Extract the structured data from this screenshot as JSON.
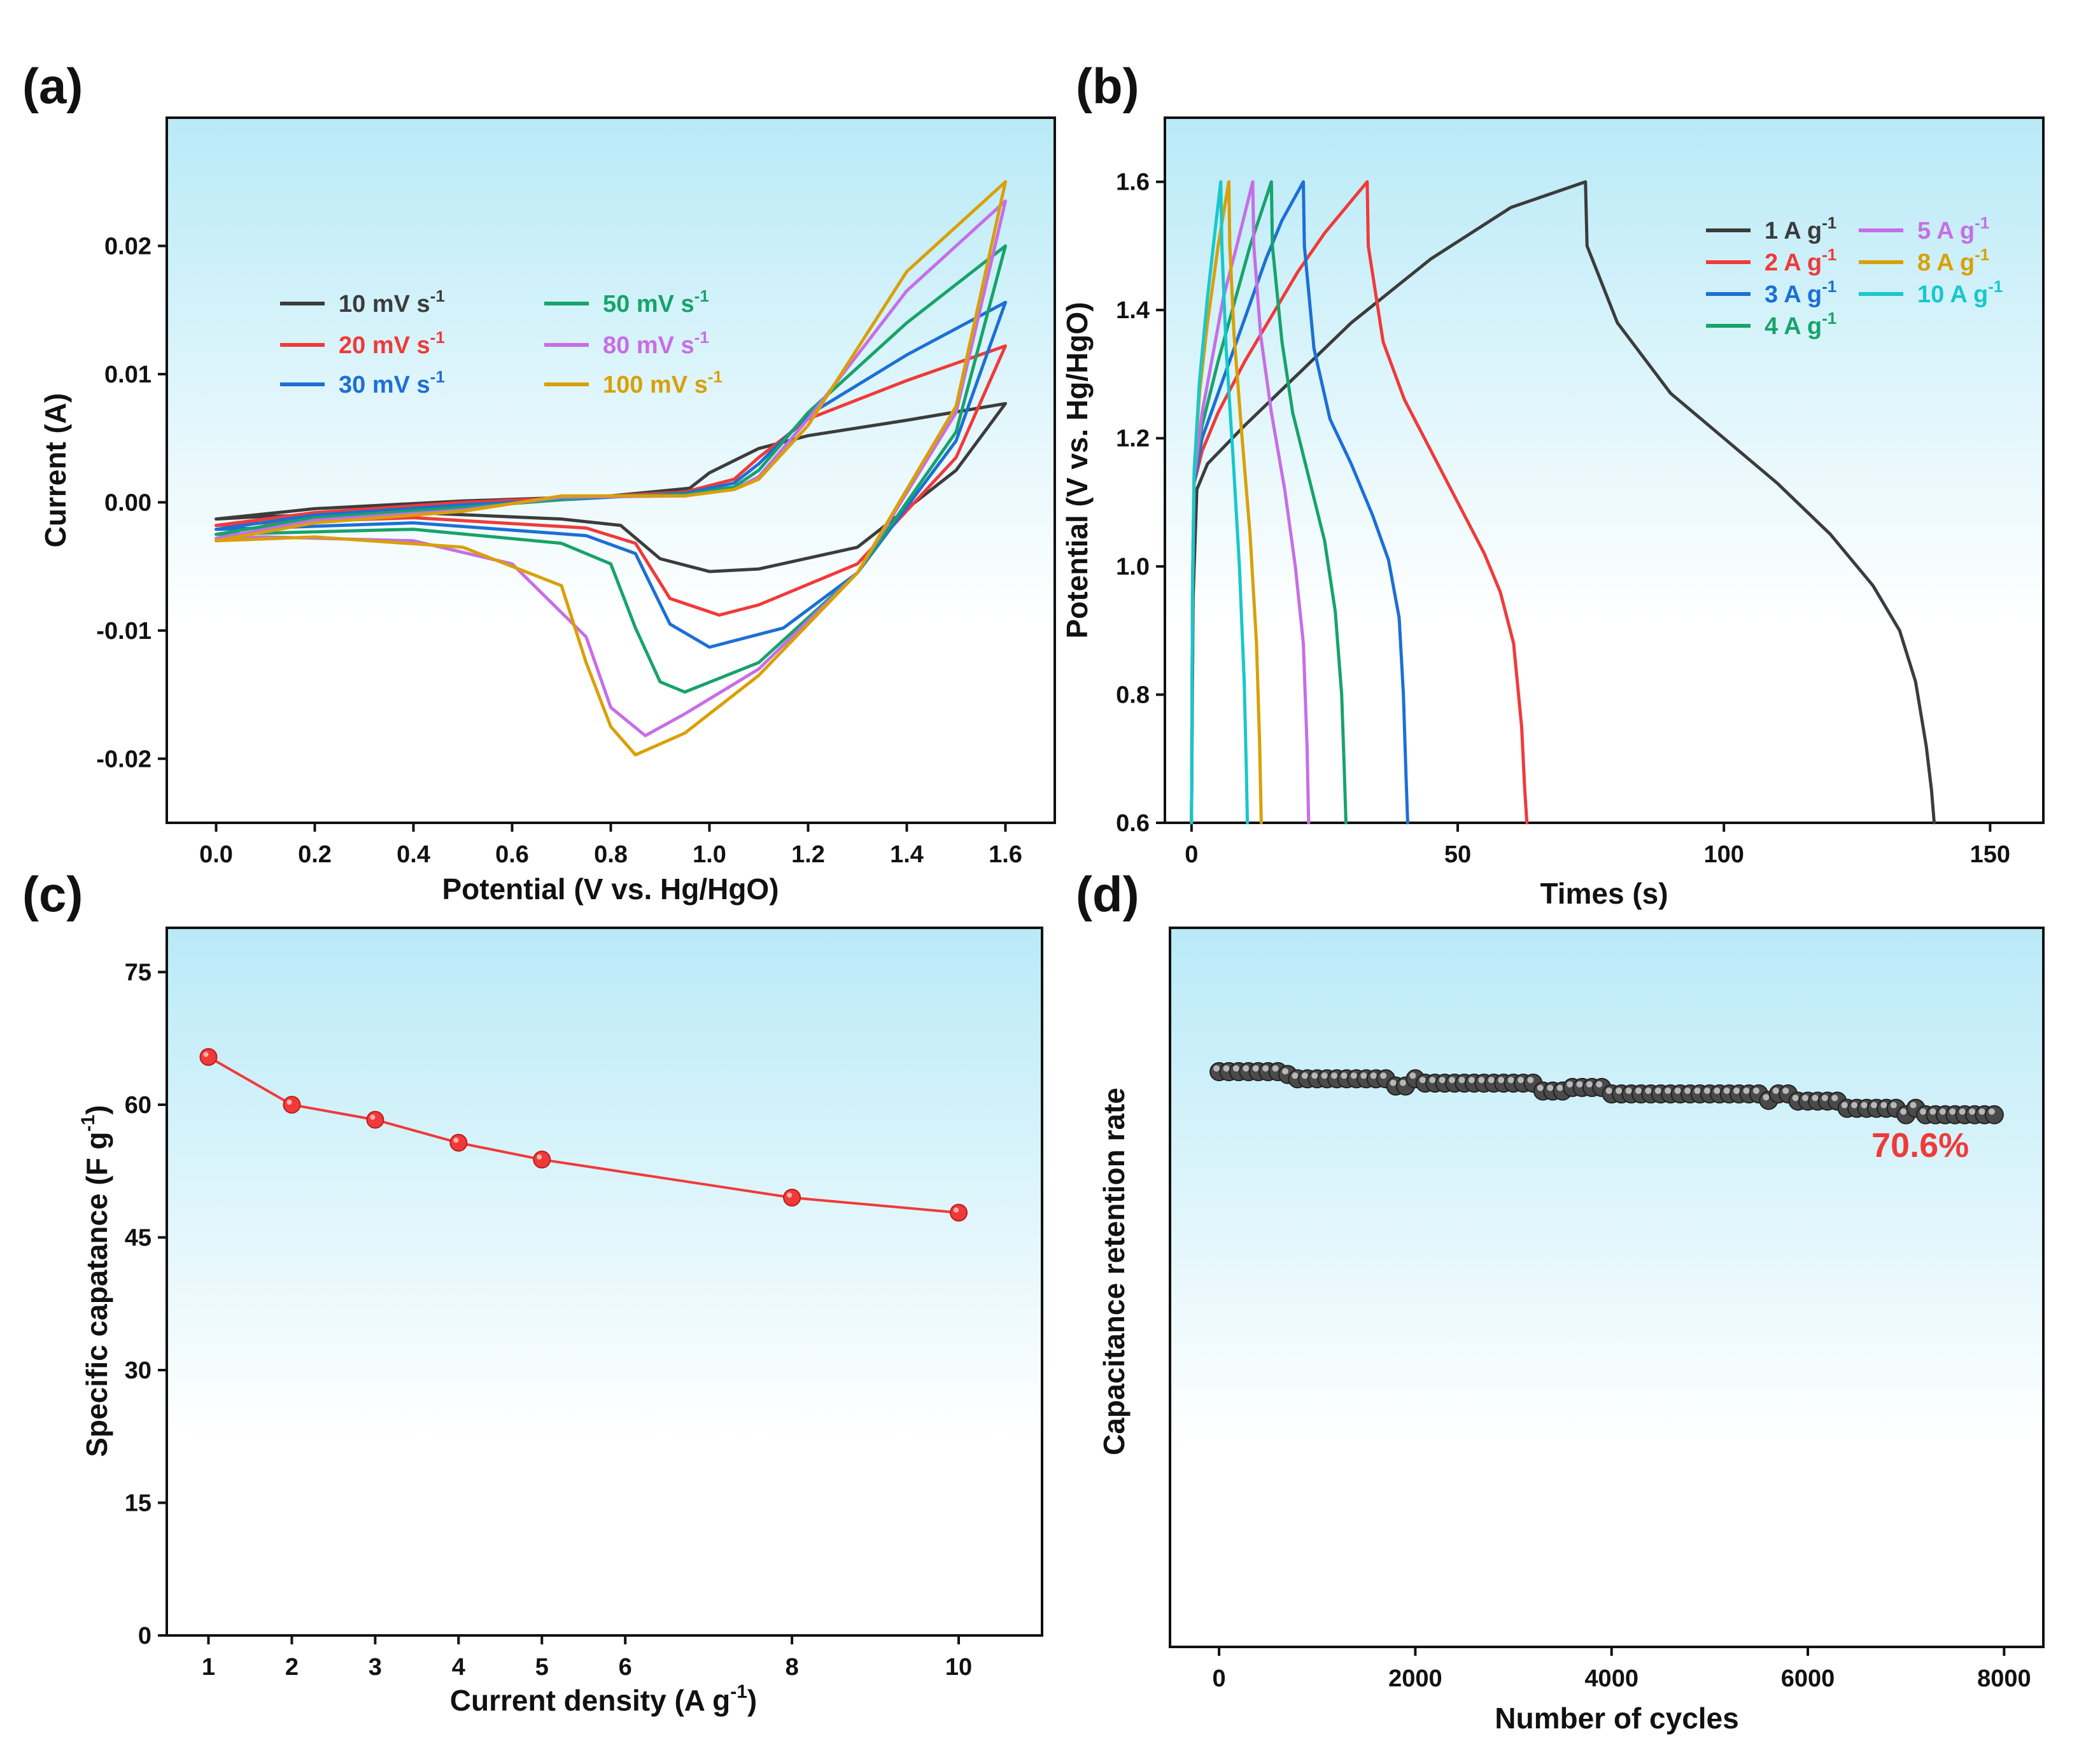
{
  "colors": {
    "bg_top": "#b9eaf7",
    "bg_bottom": "#ffffff",
    "axis": "#111111",
    "black": "#3c3c3c",
    "red": "#f03a3a",
    "blue": "#1c6fd6",
    "green": "#17a36a",
    "violet": "#c66ee6",
    "orange": "#d9a007",
    "cyan": "#18c7cc",
    "retention_marker": "#4a4a4a",
    "retention_label": "#f03a3a"
  },
  "chart_data": [
    {
      "panel": "(a)",
      "type": "line",
      "title": "",
      "xlabel": "Potential (V vs. Hg/HgO)",
      "ylabel": "Current (A)",
      "xlim": [
        -0.1,
        1.7
      ],
      "ylim": [
        -0.025,
        0.03
      ],
      "xticks": [
        "0.0",
        "0.2",
        "0.4",
        "0.6",
        "0.8",
        "1.0",
        "1.2",
        "1.4",
        "1.6"
      ],
      "yticks": [
        "-0.02",
        "-0.01",
        "0.00",
        "0.01",
        "0.02"
      ],
      "legend_position": "upper-left",
      "legend_unit": "mV s",
      "legend_sup": "-1",
      "series": [
        {
          "name": "10 mV s-1",
          "label": "10 ",
          "color_key": "black",
          "x": [
            0,
            0.2,
            0.5,
            0.8,
            0.96,
            1.0,
            1.1,
            1.2,
            1.4,
            1.6,
            1.6,
            1.5,
            1.3,
            1.1,
            1.0,
            0.9,
            0.82,
            0.7,
            0.4,
            0.1,
            0
          ],
          "y": [
            -0.0013,
            -0.0005,
            0.0001,
            0.0005,
            0.0011,
            0.0023,
            0.0042,
            0.0052,
            0.0064,
            0.0077,
            0.0077,
            0.0025,
            -0.0035,
            -0.0052,
            -0.0054,
            -0.0044,
            -0.0018,
            -0.0013,
            -0.0008,
            -0.0011,
            -0.0013
          ]
        },
        {
          "name": "20 mV s-1",
          "label": "20 ",
          "color_key": "red",
          "x": [
            0,
            0.2,
            0.5,
            0.8,
            0.95,
            1.05,
            1.1,
            1.2,
            1.4,
            1.6,
            1.6,
            1.5,
            1.3,
            1.1,
            1.02,
            0.92,
            0.85,
            0.75,
            0.4,
            0.1,
            0
          ],
          "y": [
            -0.0018,
            -0.0008,
            0.0,
            0.0005,
            0.0008,
            0.0018,
            0.0035,
            0.0065,
            0.0095,
            0.0122,
            0.0122,
            0.0035,
            -0.0048,
            -0.008,
            -0.0088,
            -0.0075,
            -0.0032,
            -0.002,
            -0.0012,
            -0.0016,
            -0.0018
          ]
        },
        {
          "name": "30 mV s-1",
          "label": "30 ",
          "color_key": "blue",
          "x": [
            0,
            0.2,
            0.5,
            0.8,
            0.95,
            1.05,
            1.1,
            1.2,
            1.4,
            1.6,
            1.6,
            1.5,
            1.3,
            1.15,
            1.0,
            0.92,
            0.85,
            0.75,
            0.4,
            0.1,
            0
          ],
          "y": [
            -0.0021,
            -0.001,
            -0.0002,
            0.0004,
            0.0007,
            0.0015,
            0.003,
            0.0068,
            0.0115,
            0.0156,
            0.0156,
            0.0048,
            -0.0055,
            -0.0098,
            -0.0113,
            -0.0095,
            -0.004,
            -0.0026,
            -0.0016,
            -0.002,
            -0.0021
          ]
        },
        {
          "name": "50 mV s-1",
          "label": "50 ",
          "color_key": "green",
          "x": [
            0,
            0.2,
            0.5,
            0.8,
            0.95,
            1.05,
            1.1,
            1.2,
            1.4,
            1.6,
            1.6,
            1.5,
            1.3,
            1.1,
            0.95,
            0.9,
            0.85,
            0.8,
            0.7,
            0.4,
            0.1,
            0
          ],
          "y": [
            -0.0025,
            -0.0012,
            -0.0004,
            0.0005,
            0.0006,
            0.0012,
            0.0025,
            0.007,
            0.014,
            0.02,
            0.02,
            0.0055,
            -0.0055,
            -0.0125,
            -0.0148,
            -0.014,
            -0.0098,
            -0.0048,
            -0.0032,
            -0.0021,
            -0.0024,
            -0.0025
          ]
        },
        {
          "name": "80 mV s-1",
          "label": "80 ",
          "color_key": "violet",
          "x": [
            0,
            0.2,
            0.5,
            0.7,
            0.95,
            1.05,
            1.1,
            1.2,
            1.4,
            1.6,
            1.6,
            1.5,
            1.3,
            1.1,
            0.95,
            0.87,
            0.8,
            0.75,
            0.6,
            0.4,
            0.1,
            0
          ],
          "y": [
            -0.0028,
            -0.0014,
            -0.0006,
            0.0004,
            0.0005,
            0.001,
            0.002,
            0.0065,
            0.0165,
            0.0235,
            0.0235,
            0.007,
            -0.0055,
            -0.013,
            -0.0165,
            -0.0182,
            -0.016,
            -0.0105,
            -0.0048,
            -0.003,
            -0.0027,
            -0.0028
          ]
        },
        {
          "name": "100 mV s-1",
          "label": "100 ",
          "color_key": "orange",
          "x": [
            0,
            0.2,
            0.5,
            0.7,
            0.95,
            1.05,
            1.1,
            1.2,
            1.4,
            1.6,
            1.6,
            1.5,
            1.3,
            1.1,
            0.95,
            0.85,
            0.8,
            0.75,
            0.7,
            0.5,
            0.2,
            0
          ],
          "y": [
            -0.003,
            -0.0016,
            -0.0007,
            0.0005,
            0.0005,
            0.001,
            0.0018,
            0.006,
            0.018,
            0.025,
            0.025,
            0.0075,
            -0.0055,
            -0.0135,
            -0.018,
            -0.0197,
            -0.0175,
            -0.0125,
            -0.0065,
            -0.0035,
            -0.0027,
            -0.003
          ]
        }
      ]
    },
    {
      "panel": "(b)",
      "type": "line",
      "title": "",
      "xlabel": "Times (s)",
      "ylabel": "Potential (V vs. Hg/HgO)",
      "xlim": [
        -5,
        160
      ],
      "ylim": [
        0.6,
        1.7
      ],
      "xticks": [
        "0",
        "50",
        "100",
        "150"
      ],
      "yticks": [
        "0.6",
        "0.8",
        "1.0",
        "1.2",
        "1.4",
        "1.6"
      ],
      "legend_position": "upper-right",
      "legend_unit": "A g",
      "legend_sup": "-1",
      "series": [
        {
          "name": "1 A g-1",
          "label": "1 ",
          "color_key": "black",
          "x": [
            0,
            0.3,
            1,
            3,
            10,
            20,
            30,
            45,
            60,
            74,
            74,
            74.3,
            80,
            90,
            100,
            110,
            120,
            128,
            133,
            136,
            138,
            139,
            139.5
          ],
          "y": [
            0.6,
            0.95,
            1.12,
            1.16,
            1.22,
            1.3,
            1.38,
            1.48,
            1.56,
            1.6,
            1.6,
            1.5,
            1.38,
            1.27,
            1.2,
            1.13,
            1.05,
            0.97,
            0.9,
            0.82,
            0.72,
            0.65,
            0.6
          ]
        },
        {
          "name": "2 A g-1",
          "label": "2 ",
          "color_key": "red",
          "x": [
            0,
            0.2,
            0.5,
            2,
            5,
            10,
            15,
            20,
            25,
            30,
            33,
            33,
            33.2,
            36,
            40,
            45,
            50,
            55,
            58,
            60.5,
            62,
            62.6,
            63
          ],
          "y": [
            0.6,
            0.95,
            1.13,
            1.18,
            1.24,
            1.32,
            1.39,
            1.46,
            1.52,
            1.57,
            1.6,
            1.6,
            1.5,
            1.35,
            1.26,
            1.18,
            1.1,
            1.02,
            0.96,
            0.88,
            0.75,
            0.65,
            0.6
          ]
        },
        {
          "name": "3 A g-1",
          "label": "3 ",
          "color_key": "blue",
          "x": [
            0,
            0.2,
            0.5,
            2,
            5,
            8,
            11,
            14,
            17,
            21,
            21,
            21.2,
            23,
            26,
            30,
            34,
            37,
            39,
            39.8,
            40.3,
            40.6
          ],
          "y": [
            0.6,
            0.97,
            1.13,
            1.2,
            1.27,
            1.34,
            1.41,
            1.48,
            1.54,
            1.6,
            1.6,
            1.5,
            1.34,
            1.23,
            1.16,
            1.08,
            1.01,
            0.92,
            0.8,
            0.67,
            0.6
          ]
        },
        {
          "name": "4 A g-1",
          "label": "4 ",
          "color_key": "green",
          "x": [
            0,
            0.2,
            0.5,
            2,
            5,
            8,
            11,
            15,
            15,
            15.2,
            17,
            19,
            22,
            25,
            27,
            28.2,
            28.7,
            29
          ],
          "y": [
            0.6,
            0.97,
            1.14,
            1.22,
            1.32,
            1.41,
            1.5,
            1.6,
            1.6,
            1.5,
            1.35,
            1.24,
            1.14,
            1.04,
            0.93,
            0.8,
            0.68,
            0.6
          ]
        },
        {
          "name": "5 A g-1",
          "label": "5 ",
          "color_key": "violet",
          "x": [
            0,
            0.2,
            0.5,
            2,
            4,
            6,
            8.5,
            11.5,
            11.5,
            11.7,
            13,
            15,
            17.5,
            19.5,
            21,
            21.7,
            22
          ],
          "y": [
            0.6,
            0.98,
            1.14,
            1.24,
            1.33,
            1.42,
            1.5,
            1.6,
            1.6,
            1.5,
            1.36,
            1.24,
            1.12,
            1.0,
            0.88,
            0.72,
            0.6
          ]
        },
        {
          "name": "8 A g-1",
          "label": "8 ",
          "color_key": "orange",
          "x": [
            0,
            0.2,
            0.5,
            1.5,
            3,
            5,
            7,
            7,
            7.2,
            8,
            9.5,
            11,
            12.2,
            12.8,
            13.1
          ],
          "y": [
            0.6,
            0.98,
            1.15,
            1.27,
            1.38,
            1.5,
            1.6,
            1.6,
            1.5,
            1.36,
            1.2,
            1.05,
            0.88,
            0.72,
            0.6
          ]
        },
        {
          "name": "10 A g-1",
          "label": "10 ",
          "color_key": "cyan",
          "x": [
            0,
            0.2,
            0.5,
            1.5,
            3,
            4.5,
            5.5,
            5.5,
            5.7,
            6.5,
            7.8,
            9,
            9.9,
            10.3,
            10.5
          ],
          "y": [
            0.6,
            0.98,
            1.15,
            1.29,
            1.42,
            1.53,
            1.6,
            1.6,
            1.5,
            1.34,
            1.17,
            1.0,
            0.82,
            0.68,
            0.6
          ]
        }
      ]
    },
    {
      "panel": "(c)",
      "type": "line",
      "title": "",
      "xlabel": "Current density (A g",
      "xlabel_sup": "-1",
      "xlabel_end": ")",
      "ylabel": "Specific capatance (F g",
      "ylabel_sup": "-1",
      "ylabel_end": ")",
      "xlim": [
        0.5,
        11
      ],
      "ylim": [
        0,
        80
      ],
      "xticks": [
        "1",
        "2",
        "3",
        "4",
        "5",
        "6",
        "8",
        "10"
      ],
      "yticks": [
        "0",
        "15",
        "30",
        "45",
        "60",
        "75"
      ],
      "series": [
        {
          "name": "Specific capacitance",
          "color_key": "red",
          "x": [
            1,
            2,
            3,
            4,
            5,
            8,
            10
          ],
          "y": [
            65.4,
            60.0,
            58.3,
            55.7,
            53.8,
            49.5,
            47.8
          ]
        }
      ]
    },
    {
      "panel": "(d)",
      "type": "scatter",
      "title": "",
      "xlabel": "Number of cycles",
      "ylabel": "Capacitance retention rate",
      "xlim": [
        -500,
        8400
      ],
      "ylim": [
        0,
        100
      ],
      "xticks": [
        "0",
        "2000",
        "4000",
        "6000",
        "8000"
      ],
      "yticks": [],
      "annotation": "70.6%",
      "series": [
        {
          "name": "Capacitance retention",
          "color_key": "retention_marker",
          "x": [
            0,
            100,
            200,
            300,
            400,
            500,
            600,
            700,
            800,
            900,
            1000,
            1100,
            1200,
            1300,
            1400,
            1500,
            1600,
            1700,
            1800,
            1900,
            2000,
            2100,
            2200,
            2300,
            2400,
            2500,
            2600,
            2700,
            2800,
            2900,
            3000,
            3100,
            3200,
            3300,
            3400,
            3500,
            3600,
            3700,
            3800,
            3900,
            4000,
            4100,
            4200,
            4300,
            4400,
            4500,
            4600,
            4700,
            4800,
            4900,
            5000,
            5100,
            5200,
            5300,
            5400,
            5500,
            5600,
            5700,
            5800,
            5900,
            6000,
            6100,
            6200,
            6300,
            6400,
            6500,
            6600,
            6700,
            6800,
            6900,
            7000,
            7100,
            7200,
            7300,
            7400,
            7500,
            7600,
            7700,
            7800,
            7900
          ],
          "y": [
            80.0,
            80.0,
            80.0,
            80.0,
            80.0,
            80.0,
            80.0,
            79.6,
            79.0,
            79.0,
            79.0,
            79.0,
            79.0,
            79.0,
            79.0,
            79.0,
            79.0,
            79.0,
            78.0,
            78.0,
            79.0,
            78.4,
            78.4,
            78.4,
            78.4,
            78.4,
            78.4,
            78.4,
            78.4,
            78.4,
            78.4,
            78.4,
            78.4,
            77.3,
            77.3,
            77.3,
            77.8,
            77.8,
            77.8,
            77.8,
            76.9,
            76.9,
            76.9,
            76.9,
            76.9,
            76.9,
            76.9,
            76.9,
            76.9,
            76.9,
            76.9,
            76.9,
            76.9,
            76.9,
            76.9,
            76.9,
            76.0,
            76.9,
            76.9,
            75.9,
            75.9,
            75.9,
            75.9,
            75.9,
            74.9,
            74.9,
            74.9,
            74.9,
            74.9,
            74.9,
            74.0,
            74.9,
            74.0,
            74.0,
            74.0,
            74.0,
            74.0,
            74.0,
            74.0,
            74.0
          ]
        }
      ]
    }
  ]
}
